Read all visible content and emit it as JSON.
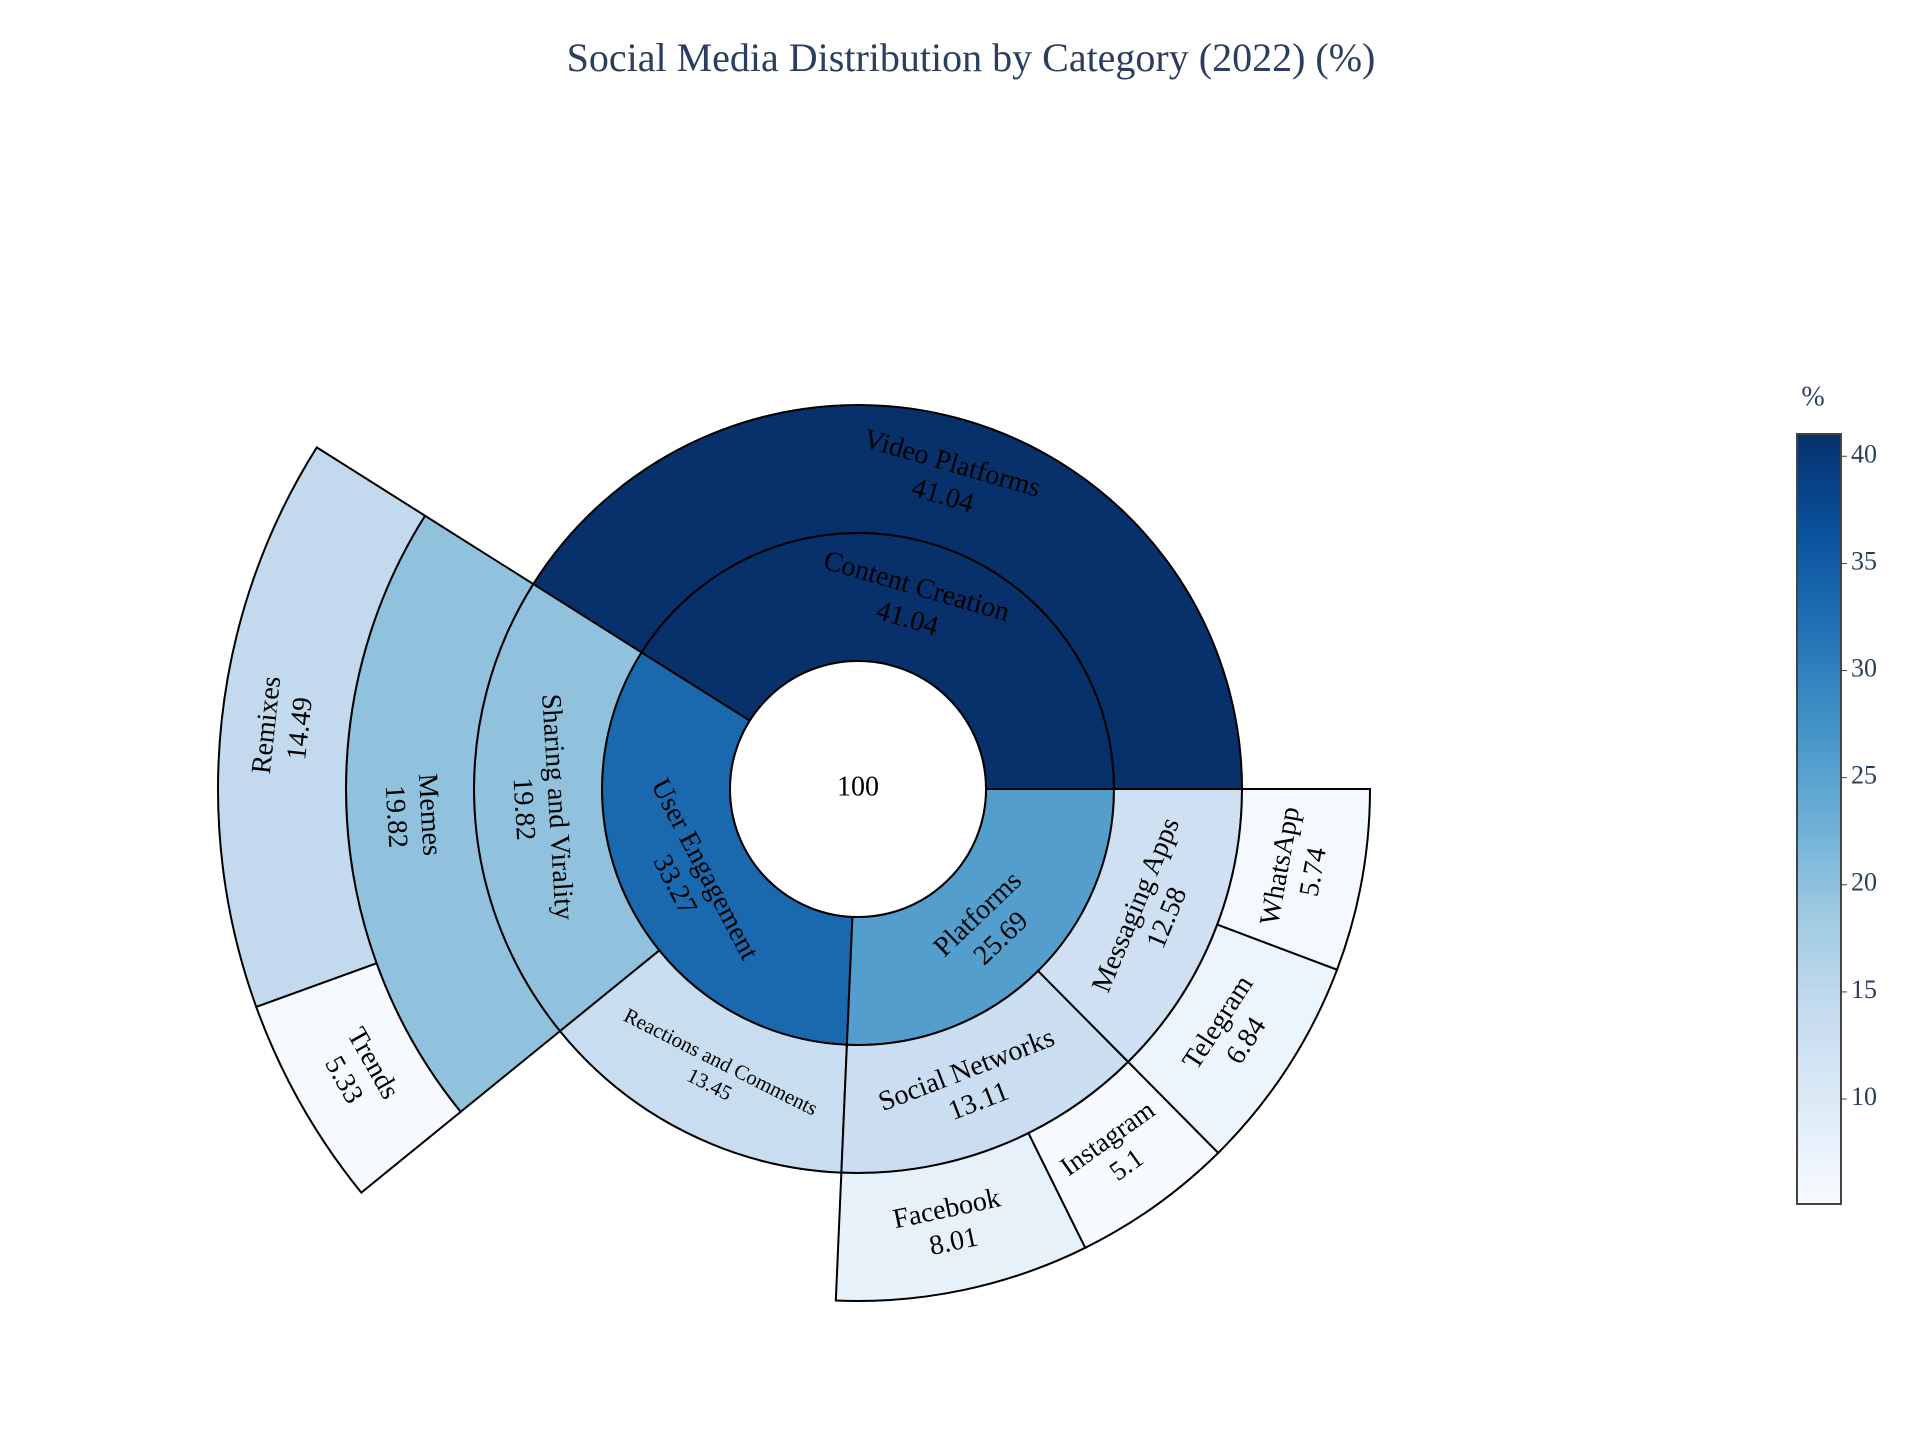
{
  "chart_data": {
    "type": "sunburst",
    "title": "Social Media Distribution by Category (2022) (%)",
    "root_value": 100,
    "root_color": "#ffffff",
    "labels": [
      "Content Creation",
      "User Engagement",
      "Platforms",
      "Video Platforms",
      "Sharing and Virality",
      "Reactions and Comments",
      "Social Networks",
      "Messaging Apps",
      "Memes",
      "Remixes",
      "Trends",
      "Facebook",
      "Instagram",
      "Telegram",
      "WhatsApp"
    ],
    "parents": [
      null,
      null,
      null,
      "Content Creation",
      "User Engagement",
      "User Engagement",
      "Platforms",
      "Platforms",
      "Sharing and Virality",
      "Memes",
      "Memes",
      "Social Networks",
      "Social Networks",
      "Messaging Apps",
      "Messaging Apps"
    ],
    "values": [
      41.04,
      33.27,
      25.69,
      41.04,
      19.82,
      13.45,
      13.11,
      12.58,
      19.82,
      14.49,
      5.33,
      8.01,
      5.1,
      6.84,
      5.74
    ],
    "colorscale": [
      [
        0,
        "#f7fbff"
      ],
      [
        0.125,
        "#deebf7"
      ],
      [
        0.25,
        "#c6dbef"
      ],
      [
        0.375,
        "#9ecae1"
      ],
      [
        0.5,
        "#6baed6"
      ],
      [
        0.625,
        "#4292c6"
      ],
      [
        0.75,
        "#2171b5"
      ],
      [
        0.875,
        "#08519c"
      ],
      [
        1,
        "#08306b"
      ]
    ],
    "colorbar": {
      "title": "%",
      "range": [
        5.1,
        41.04
      ],
      "ticks": [
        10,
        15,
        20,
        25,
        30,
        35,
        40
      ]
    }
  }
}
